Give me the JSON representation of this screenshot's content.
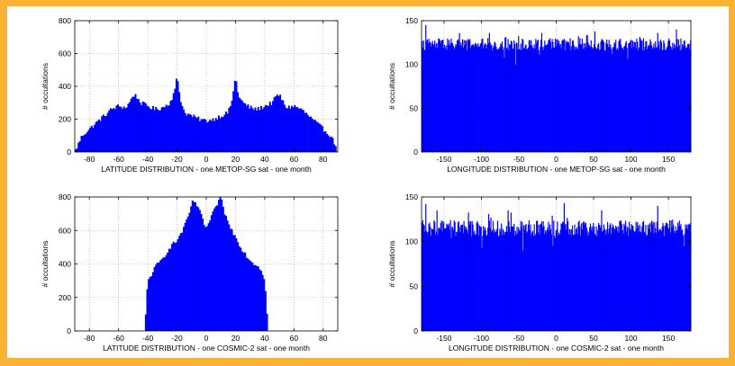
{
  "colors": {
    "border": "#f9b233",
    "bar": "#0000ff",
    "axis": "#000000",
    "grid": "#a0a0a0",
    "background": "#ffffff"
  },
  "chart_data": [
    {
      "type": "bar",
      "id": "lat-metop",
      "xlabel": "LATITUDE DISTRIBUTION - one METOP-SG sat - one month",
      "ylabel": "# occultations",
      "xlim": [
        -90,
        90
      ],
      "ylim": [
        0,
        800
      ],
      "xticks": [
        -80,
        -60,
        -40,
        -20,
        0,
        20,
        40,
        60,
        80
      ],
      "yticks": [
        0,
        200,
        400,
        600,
        800
      ],
      "grid": true,
      "bin_width": 1,
      "x": [
        -90,
        -85,
        -80,
        -75,
        -70,
        -65,
        -60,
        -55,
        -52,
        -50,
        -48,
        -45,
        -40,
        -35,
        -30,
        -25,
        -22,
        -21,
        -20,
        -19,
        -18,
        -15,
        -10,
        -5,
        0,
        5,
        10,
        15,
        18,
        19,
        20,
        21,
        22,
        25,
        30,
        35,
        40,
        45,
        48,
        50,
        52,
        55,
        60,
        65,
        70,
        75,
        80,
        85,
        89,
        90
      ],
      "values": [
        0,
        100,
        140,
        180,
        220,
        260,
        280,
        270,
        310,
        350,
        340,
        300,
        280,
        260,
        270,
        300,
        360,
        400,
        470,
        400,
        330,
        240,
        220,
        200,
        190,
        200,
        220,
        240,
        330,
        400,
        460,
        400,
        340,
        300,
        270,
        260,
        280,
        300,
        340,
        350,
        310,
        270,
        280,
        260,
        220,
        180,
        140,
        100,
        30,
        0
      ]
    },
    {
      "type": "bar",
      "id": "lon-metop",
      "xlabel": "LONGITUDE DISTRIBUTION - one METOP-SG sat - one month",
      "ylabel": "# occultations",
      "xlim": [
        -180,
        180
      ],
      "ylim": [
        0,
        150
      ],
      "xticks": [
        -150,
        -100,
        -50,
        0,
        50,
        100,
        150
      ],
      "yticks": [
        0,
        50,
        100,
        150
      ],
      "grid": true,
      "bin_width": 1,
      "base": 123,
      "amp": 7,
      "spikes": [
        [
          -175,
          145
        ],
        [
          -130,
          136
        ],
        [
          -90,
          136
        ],
        [
          -70,
          108
        ],
        [
          -55,
          100
        ],
        [
          -20,
          136
        ],
        [
          40,
          133
        ],
        [
          95,
          106
        ],
        [
          135,
          136
        ],
        [
          160,
          140
        ]
      ]
    },
    {
      "type": "bar",
      "id": "lat-cosmic",
      "xlabel": "LATITUDE DISTRIBUTION - one COSMIC-2 sat - one month",
      "ylabel": "# occultations",
      "xlim": [
        -90,
        90
      ],
      "ylim": [
        0,
        800
      ],
      "xticks": [
        -80,
        -60,
        -40,
        -20,
        0,
        20,
        40,
        60,
        80
      ],
      "yticks": [
        0,
        200,
        400,
        600,
        800
      ],
      "grid": true,
      "bin_width": 1,
      "x": [
        -42,
        -41,
        -40,
        -38,
        -35,
        -30,
        -25,
        -20,
        -15,
        -12,
        -10,
        -8,
        -5,
        -2,
        0,
        2,
        5,
        8,
        10,
        12,
        15,
        20,
        25,
        30,
        35,
        38,
        40,
        41,
        42
      ],
      "values": [
        0,
        180,
        300,
        330,
        380,
        430,
        500,
        540,
        620,
        690,
        760,
        780,
        720,
        650,
        610,
        650,
        710,
        770,
        790,
        720,
        640,
        560,
        480,
        420,
        390,
        360,
        300,
        200,
        0
      ]
    },
    {
      "type": "bar",
      "id": "lon-cosmic",
      "xlabel": "LONGITUDE DISTRIBUTION - one COSMIC-2 sat - one month",
      "ylabel": "# occultations",
      "xlim": [
        -180,
        180
      ],
      "ylim": [
        0,
        150
      ],
      "xticks": [
        -150,
        -100,
        -50,
        0,
        50,
        100,
        150
      ],
      "yticks": [
        0,
        50,
        100,
        150
      ],
      "grid": true,
      "bin_width": 1,
      "base": 115,
      "amp": 9,
      "spikes": [
        [
          -175,
          142
        ],
        [
          -160,
          135
        ],
        [
          -100,
          93
        ],
        [
          -65,
          135
        ],
        [
          -45,
          90
        ],
        [
          10,
          143
        ],
        [
          -5,
          95
        ],
        [
          60,
          135
        ],
        [
          135,
          140
        ],
        [
          170,
          95
        ]
      ]
    }
  ]
}
